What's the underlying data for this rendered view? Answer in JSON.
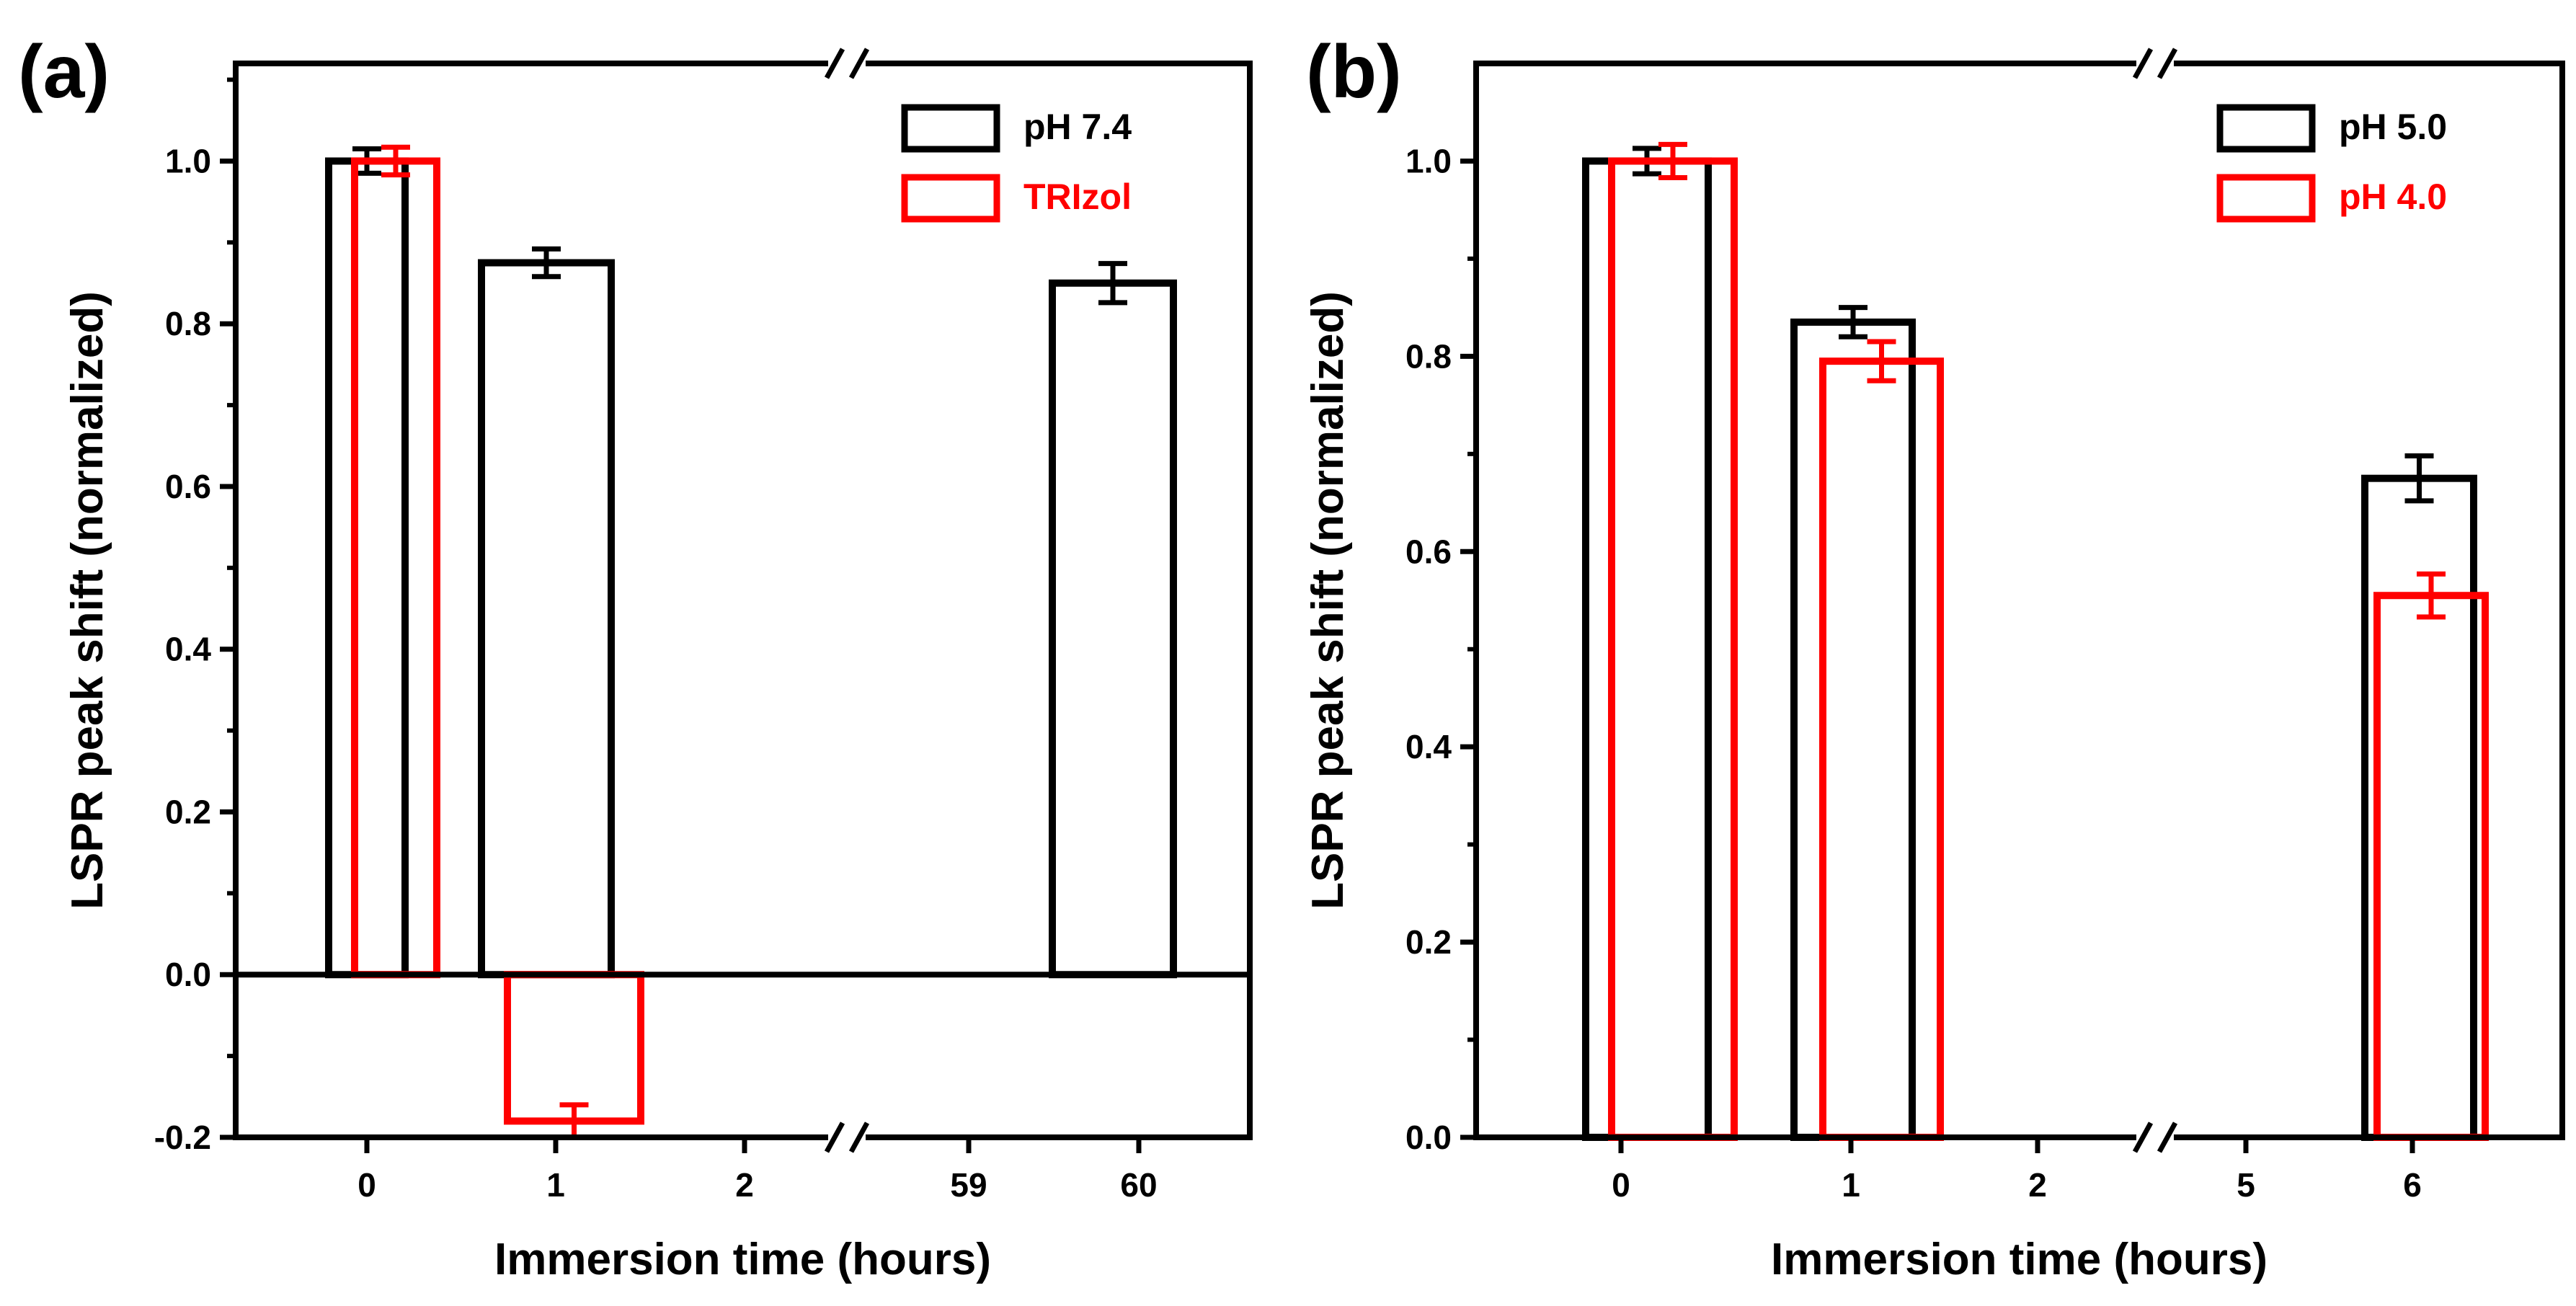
{
  "chart_data": [
    {
      "panel": "(a)",
      "type": "bar",
      "ylabel": "LSPR peak shift (normalized)",
      "xlabel": "Immersion time (hours)",
      "ylim": [
        -0.2,
        1.12
      ],
      "yticks": [
        "-0.2",
        "0.0",
        "0.2",
        "0.4",
        "0.6",
        "0.8",
        "1.0"
      ],
      "categories": [
        "0",
        "1",
        "2",
        "59",
        "60"
      ],
      "axis_break": "between 2 and 59",
      "series": [
        {
          "name": "pH 7.4",
          "color": "#000000",
          "values": [
            1.0,
            0.875,
            null,
            null,
            0.85
          ],
          "errors": [
            0.015,
            0.017,
            null,
            null,
            0.024
          ]
        },
        {
          "name": "TRIzol",
          "color": "#ff0000",
          "values": [
            1.0,
            -0.18,
            null,
            null,
            null
          ],
          "errors": [
            0.017,
            0.02,
            null,
            null,
            null
          ]
        }
      ],
      "legend_position": "top-right"
    },
    {
      "panel": "(b)",
      "type": "bar",
      "ylabel": "LSPR peak shift (normalized)",
      "xlabel": "Immersion time (hours)",
      "ylim": [
        0.0,
        1.1
      ],
      "yticks": [
        "0.0",
        "0.2",
        "0.4",
        "0.6",
        "0.8",
        "1.0"
      ],
      "categories": [
        "0",
        "1",
        "2",
        "5",
        "6"
      ],
      "axis_break": "between 2 and 5",
      "series": [
        {
          "name": "pH 5.0",
          "color": "#000000",
          "values": [
            1.0,
            0.835,
            null,
            null,
            0.675
          ],
          "errors": [
            0.013,
            0.015,
            null,
            null,
            0.023
          ]
        },
        {
          "name": "pH 4.0",
          "color": "#ff0000",
          "values": [
            1.0,
            0.795,
            null,
            null,
            0.555
          ],
          "errors": [
            0.017,
            0.02,
            null,
            null,
            0.022
          ]
        }
      ],
      "legend_position": "top-right"
    }
  ]
}
